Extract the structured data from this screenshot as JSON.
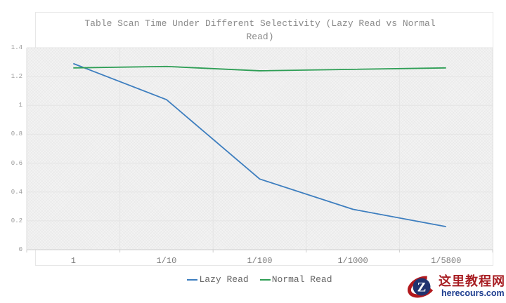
{
  "chart_data": {
    "type": "line",
    "title": "Table Scan Time Under Different Selectivity (Lazy Read vs Normal Read)",
    "categories": [
      "1",
      "1/10",
      "1/100",
      "1/1000",
      "1/5800"
    ],
    "series": [
      {
        "name": "Lazy Read",
        "color": "#3d7ebf",
        "values": [
          1.29,
          1.04,
          0.49,
          0.28,
          0.16
        ]
      },
      {
        "name": "Normal Read",
        "color": "#2e9e55",
        "values": [
          1.26,
          1.27,
          1.24,
          1.25,
          1.26
        ]
      }
    ],
    "xlabel": "",
    "ylabel": "",
    "ylim": [
      0,
      1.4
    ],
    "yticks": [
      "0",
      "0.2",
      "0.4",
      "0.6",
      "0.8",
      "1",
      "1.2",
      "1.4"
    ],
    "grid": true,
    "legend_position": "bottom"
  },
  "watermark": {
    "site_name": "这里教程网",
    "site_url": "herecours.com",
    "emblem_letter": "Z",
    "accent_red": "#a81e23",
    "accent_blue": "#1d3d8f"
  }
}
